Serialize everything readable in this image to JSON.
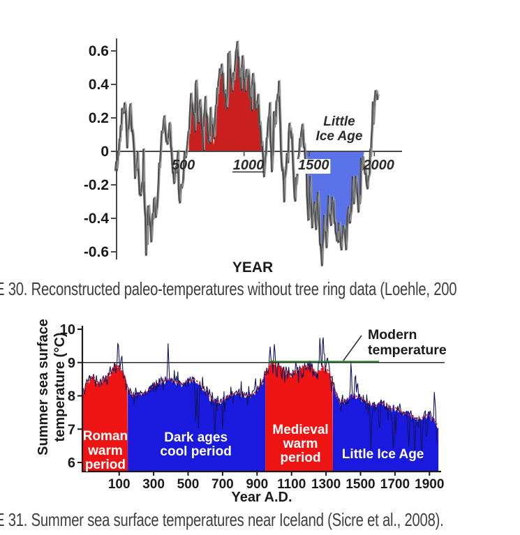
{
  "page": {
    "background": "#ffffff"
  },
  "figure30": {
    "caption": "E 30. Reconstructed paleo-temperatures without tree ring data (Loehle, 200",
    "xlabel": "YEAR",
    "annotation_line1": "Little",
    "annotation_line2": "Ice Age"
  },
  "figure31": {
    "caption": "E 31. Summer sea surface temperatures near Iceland (Sicre et al., 2008)."
  },
  "chart_data": [
    {
      "id": "fig30",
      "type": "area",
      "title": "",
      "xlabel": "YEAR",
      "ylabel": "",
      "xlim": [
        -20,
        2180
      ],
      "ylim": [
        -0.7,
        0.7
      ],
      "grid": false,
      "y_ticks": [
        "0.6",
        "0.4",
        "0.2",
        "0",
        "-0.2",
        "-0.4",
        "-0.6"
      ],
      "y_tick_values": [
        0.6,
        0.4,
        0.2,
        0,
        -0.2,
        -0.4,
        -0.6
      ],
      "x_ticks": [
        "500",
        "1000",
        "1500",
        "2000"
      ],
      "x_tick_values": [
        500,
        1000,
        1500,
        2000
      ],
      "underlined_x_tick": 1000,
      "boxed_x_tick": 1500,
      "annotation": {
        "lines": [
          "Little",
          "Ice Age"
        ],
        "anchor_year": 1690,
        "anchor_value": 0.18
      },
      "axis_color": "#4a4a4a",
      "line_color": "#3a3a3a",
      "regions": [
        {
          "name": "medieval-warm-period",
          "side": "above",
          "from_year": 543,
          "to_year": 1112,
          "color": "#c91f1f"
        },
        {
          "name": "little-ice-age",
          "side": "below",
          "from_year": 1432,
          "to_year": 1888,
          "color": "#5a73e8"
        }
      ],
      "series": [
        {
          "name": "temperature-anomaly",
          "anchors": [
            [
              -20,
              -0.12
            ],
            [
              0,
              -0.04
            ],
            [
              30,
              0.22
            ],
            [
              55,
              0.3
            ],
            [
              70,
              0.07
            ],
            [
              95,
              0.28
            ],
            [
              115,
              0.05
            ],
            [
              130,
              -0.12
            ],
            [
              150,
              -0.05
            ],
            [
              170,
              -0.3
            ],
            [
              195,
              -0.15
            ],
            [
              215,
              -0.5
            ],
            [
              235,
              -0.3
            ],
            [
              255,
              -0.52
            ],
            [
              275,
              -0.3
            ],
            [
              295,
              -0.38
            ],
            [
              315,
              -0.12
            ],
            [
              335,
              0.1
            ],
            [
              355,
              0.2
            ],
            [
              375,
              0.05
            ],
            [
              395,
              0.18
            ],
            [
              415,
              -0.1
            ],
            [
              435,
              -0.18
            ],
            [
              455,
              -0.05
            ],
            [
              470,
              -0.32
            ],
            [
              490,
              -0.2
            ],
            [
              510,
              -0.05
            ],
            [
              530,
              0.05
            ],
            [
              543,
              0.1
            ],
            [
              560,
              0.35
            ],
            [
              580,
              0.2
            ],
            [
              600,
              0.42
            ],
            [
              615,
              0.15
            ],
            [
              630,
              0.3
            ],
            [
              650,
              0.12
            ],
            [
              670,
              0.32
            ],
            [
              690,
              0.1
            ],
            [
              705,
              0.03
            ],
            [
              720,
              0.18
            ],
            [
              735,
              0.04
            ],
            [
              755,
              0.3
            ],
            [
              775,
              0.42
            ],
            [
              795,
              0.5
            ],
            [
              815,
              0.38
            ],
            [
              835,
              0.28
            ],
            [
              855,
              0.58
            ],
            [
              875,
              0.35
            ],
            [
              895,
              0.5
            ],
            [
              915,
              0.63
            ],
            [
              935,
              0.42
            ],
            [
              955,
              0.55
            ],
            [
              975,
              0.38
            ],
            [
              995,
              0.5
            ],
            [
              1015,
              0.32
            ],
            [
              1035,
              0.45
            ],
            [
              1055,
              0.25
            ],
            [
              1075,
              0.35
            ],
            [
              1090,
              0.12
            ],
            [
              1105,
              0.05
            ],
            [
              1120,
              -0.1
            ],
            [
              1140,
              0.08
            ],
            [
              1160,
              0.25
            ],
            [
              1180,
              -0.12
            ],
            [
              1200,
              0.1
            ],
            [
              1220,
              0.3
            ],
            [
              1236,
              0.37
            ],
            [
              1255,
              -0.05
            ],
            [
              1275,
              -0.25
            ],
            [
              1295,
              -0.05
            ],
            [
              1315,
              0.15
            ],
            [
              1335,
              0.05
            ],
            [
              1355,
              -0.3
            ],
            [
              1375,
              -0.1
            ],
            [
              1395,
              0.05
            ],
            [
              1415,
              0.15
            ],
            [
              1432,
              0.0
            ],
            [
              1445,
              -0.2
            ],
            [
              1460,
              -0.45
            ],
            [
              1475,
              -0.2
            ],
            [
              1490,
              -0.5
            ],
            [
              1505,
              -0.3
            ],
            [
              1520,
              -0.45
            ],
            [
              1535,
              -0.25
            ],
            [
              1550,
              -0.55
            ],
            [
              1565,
              -0.63
            ],
            [
              1580,
              -0.4
            ],
            [
              1600,
              -0.55
            ],
            [
              1615,
              -0.3
            ],
            [
              1630,
              -0.45
            ],
            [
              1650,
              -0.28
            ],
            [
              1665,
              -0.45
            ],
            [
              1680,
              -0.55
            ],
            [
              1700,
              -0.45
            ],
            [
              1715,
              -0.6
            ],
            [
              1730,
              -0.45
            ],
            [
              1750,
              -0.55
            ],
            [
              1765,
              -0.35
            ],
            [
              1780,
              -0.45
            ],
            [
              1800,
              -0.2
            ],
            [
              1815,
              -0.3
            ],
            [
              1830,
              -0.15
            ],
            [
              1845,
              -0.35
            ],
            [
              1860,
              -0.25
            ],
            [
              1875,
              -0.1
            ],
            [
              1888,
              -0.02
            ],
            [
              1900,
              -0.15
            ],
            [
              1915,
              -0.25
            ],
            [
              1930,
              -0.1
            ],
            [
              1945,
              0.05
            ],
            [
              1960,
              0.2
            ],
            [
              1975,
              0.35
            ],
            [
              1990,
              0.3
            ]
          ]
        }
      ]
    },
    {
      "id": "fig31",
      "type": "area",
      "title": "",
      "xlabel": "Year A.D.",
      "ylabel_lines": [
        "Summer sea surface",
        "temperature (°C)"
      ],
      "xlim": [
        -110,
        1952
      ],
      "ylim": [
        5.7,
        10
      ],
      "grid": false,
      "y_ticks": [
        "10",
        "9",
        "8",
        "7",
        "6"
      ],
      "y_tick_values": [
        10,
        9,
        8,
        7,
        6
      ],
      "x_ticks": [
        "100",
        "300",
        "500",
        "700",
        "900",
        "1100",
        "1300",
        "1500",
        "1700",
        "1900"
      ],
      "x_tick_values": [
        100,
        300,
        500,
        700,
        900,
        1100,
        1300,
        1500,
        1700,
        1900
      ],
      "modern_line": {
        "value": 9,
        "label_lines": [
          "Modern",
          "temperature"
        ],
        "line_color": "#2e2e2e",
        "green_color": "#1e8a1e"
      },
      "jagged_line_color": "#141460",
      "smooth_line_color": "#d32222",
      "regions": [
        {
          "name": "roman-warm-period",
          "label_lines": [
            "Roman",
            "warm",
            "period"
          ],
          "from_year": -110,
          "to_year": 150,
          "color": "#ee1414",
          "label_center_year": 20
        },
        {
          "name": "dark-ages-cool-period",
          "label_lines": [
            "Dark ages",
            "cool period"
          ],
          "from_year": 150,
          "to_year": 948,
          "color": "#1a1adf",
          "label_center_year": 545
        },
        {
          "name": "medieval-warm-period",
          "label_lines": [
            "Medieval",
            "warm",
            "period"
          ],
          "from_year": 948,
          "to_year": 1340,
          "color": "#ee1414",
          "label_center_year": 1152
        },
        {
          "name": "little-ice-age",
          "label_lines": [
            "Little Ice Age"
          ],
          "from_year": 1340,
          "to_year": 1952,
          "color": "#1a1adf",
          "label_center_year": 1630
        }
      ],
      "series": [
        {
          "name": "summer-sst-smoothed",
          "anchors": [
            [
              -110,
              8.1
            ],
            [
              -80,
              8.45
            ],
            [
              -50,
              8.6
            ],
            [
              -20,
              8.35
            ],
            [
              10,
              8.5
            ],
            [
              40,
              8.6
            ],
            [
              70,
              8.85
            ],
            [
              100,
              8.9
            ],
            [
              130,
              8.6
            ],
            [
              150,
              8.2
            ],
            [
              180,
              8.0
            ],
            [
              220,
              8.05
            ],
            [
              260,
              8.1
            ],
            [
              300,
              8.3
            ],
            [
              340,
              8.4
            ],
            [
              380,
              8.5
            ],
            [
              420,
              8.45
            ],
            [
              460,
              8.35
            ],
            [
              500,
              8.45
            ],
            [
              540,
              8.5
            ],
            [
              580,
              8.3
            ],
            [
              620,
              8.0
            ],
            [
              660,
              7.8
            ],
            [
              700,
              7.85
            ],
            [
              740,
              8.0
            ],
            [
              780,
              8.1
            ],
            [
              820,
              8.05
            ],
            [
              860,
              8.0
            ],
            [
              900,
              8.15
            ],
            [
              930,
              8.4
            ],
            [
              948,
              8.7
            ],
            [
              970,
              8.9
            ],
            [
              1000,
              9.0
            ],
            [
              1030,
              8.9
            ],
            [
              1060,
              8.75
            ],
            [
              1090,
              8.65
            ],
            [
              1120,
              8.75
            ],
            [
              1150,
              8.8
            ],
            [
              1180,
              8.85
            ],
            [
              1210,
              8.9
            ],
            [
              1240,
              8.65
            ],
            [
              1270,
              8.8
            ],
            [
              1300,
              8.85
            ],
            [
              1320,
              8.7
            ],
            [
              1340,
              8.4
            ],
            [
              1360,
              8.0
            ],
            [
              1380,
              7.8
            ],
            [
              1410,
              7.85
            ],
            [
              1440,
              7.95
            ],
            [
              1470,
              8.0
            ],
            [
              1500,
              7.95
            ],
            [
              1530,
              7.85
            ],
            [
              1560,
              7.75
            ],
            [
              1590,
              7.7
            ],
            [
              1620,
              7.8
            ],
            [
              1650,
              7.75
            ],
            [
              1680,
              7.6
            ],
            [
              1710,
              7.65
            ],
            [
              1740,
              7.5
            ],
            [
              1770,
              7.45
            ],
            [
              1800,
              7.4
            ],
            [
              1830,
              7.3
            ],
            [
              1860,
              7.35
            ],
            [
              1890,
              7.45
            ],
            [
              1920,
              7.3
            ],
            [
              1950,
              7.1
            ]
          ]
        }
      ],
      "spikes": [
        [
          95,
          0.7
        ],
        [
          115,
          0.45
        ],
        [
          385,
          0.85
        ],
        [
          545,
          -1.3
        ],
        [
          560,
          -1.6
        ],
        [
          655,
          -1.1
        ],
        [
          700,
          -0.85
        ],
        [
          975,
          0.65
        ],
        [
          1000,
          0.55
        ],
        [
          1265,
          1.0
        ],
        [
          1283,
          1.35
        ],
        [
          1310,
          0.5
        ],
        [
          1445,
          1.1
        ],
        [
          1470,
          0.85
        ],
        [
          1560,
          -1.4
        ],
        [
          1610,
          -1.1
        ],
        [
          1690,
          -1.5
        ],
        [
          1705,
          -0.9
        ],
        [
          1780,
          -1.0
        ],
        [
          1815,
          -1.15
        ],
        [
          1855,
          -1.3
        ],
        [
          1885,
          -0.8
        ],
        [
          1930,
          0.9
        ],
        [
          1945,
          -1.1
        ]
      ]
    }
  ]
}
